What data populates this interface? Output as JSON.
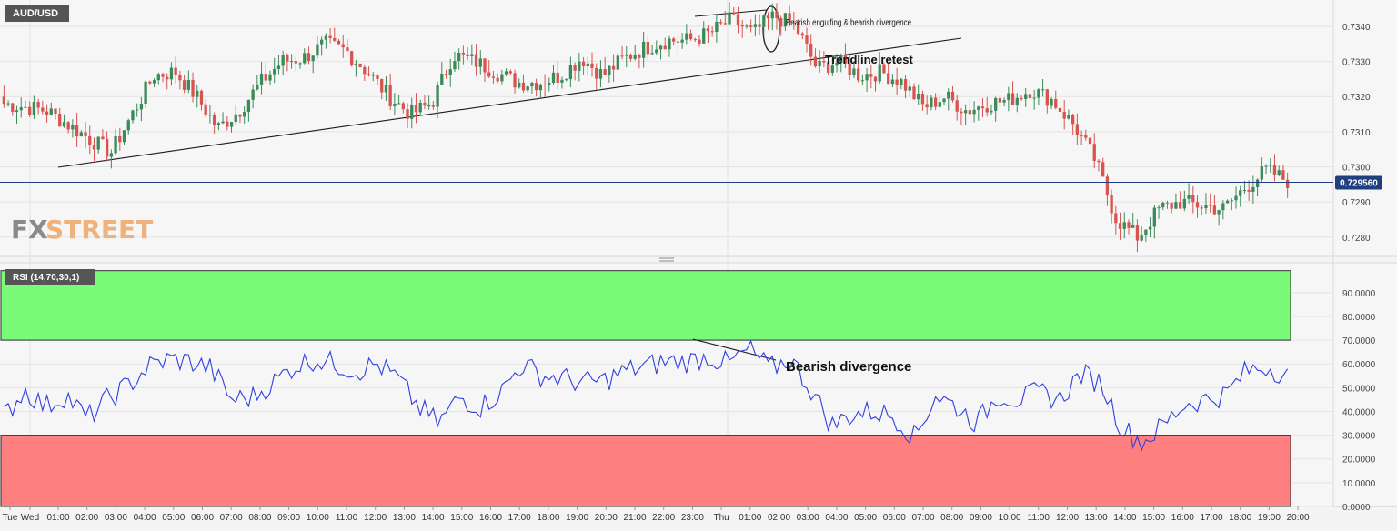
{
  "instrument_badge": "AUD/USD",
  "indicator_badge": "RSI (14,70,30,1)",
  "watermark": {
    "part1": "FX",
    "part2": "STREET"
  },
  "colors": {
    "bull": "#3b8a5a",
    "bear": "#d9534f",
    "rsi_line": "#2f3fe0",
    "overbought_fill": "#79fb79",
    "oversold_fill": "#fd7f7f",
    "price_line": "#1f3f7f",
    "badge_bg": "#555555",
    "badge_price_bg": "#1f3f7f"
  },
  "chart_data": [
    {
      "type": "candlestick",
      "symbol": "AUD/USD",
      "y_axis": {
        "ticks": [
          "0.7340",
          "0.7330",
          "0.7320",
          "0.7310",
          "0.7300",
          "0.7290",
          "0.7280"
        ],
        "range": [
          0.72745,
          0.73475
        ]
      },
      "current_price_label": "0.729560",
      "current_price": 0.72956,
      "x_axis_labels": [
        "Tue",
        "Wed",
        "01:00",
        "02:00",
        "03:00",
        "04:00",
        "05:00",
        "06:00",
        "07:00",
        "08:00",
        "09:00",
        "10:00",
        "11:00",
        "12:00",
        "13:00",
        "14:00",
        "15:00",
        "16:00",
        "17:00",
        "18:00",
        "19:00",
        "20:00",
        "21:00",
        "22:00",
        "23:00",
        "Thu",
        "01:00",
        "02:00",
        "03:00",
        "04:00",
        "05:00",
        "06:00",
        "07:00",
        "08:00",
        "09:00",
        "10:00",
        "11:00",
        "12:00",
        "13:00",
        "14:00",
        "15:00",
        "16:00",
        "17:00",
        "18:00",
        "19:00",
        "20:00"
      ],
      "price_anchors": [
        0.7318,
        0.7317,
        0.7316,
        0.7312,
        0.7308,
        0.7304,
        0.7315,
        0.7326,
        0.7327,
        0.732,
        0.7311,
        0.7316,
        0.7324,
        0.733,
        0.7331,
        0.7335,
        0.7333,
        0.7327,
        0.732,
        0.7315,
        0.7318,
        0.7332,
        0.733,
        0.7327,
        0.7324,
        0.7324,
        0.7326,
        0.7331,
        0.7326,
        0.7331,
        0.7334,
        0.7336,
        0.7336,
        0.7338,
        0.7342,
        0.7338,
        0.7343,
        0.734,
        0.7328,
        0.733,
        0.7326,
        0.7327,
        0.7324,
        0.7317,
        0.732,
        0.7316,
        0.7318,
        0.7319,
        0.7322,
        0.7319,
        0.7312,
        0.7302,
        0.7285,
        0.728,
        0.7288,
        0.729,
        0.7289,
        0.7288,
        0.7294,
        0.7299,
        0.7296
      ],
      "annotations": {
        "engulfing": "Bearish engulfing & bearish divergence",
        "retest": "Trendline retest"
      }
    },
    {
      "type": "line",
      "name": "RSI (14,70,30,1)",
      "y_axis": {
        "ticks": [
          "90.0000",
          "80.0000",
          "70.0000",
          "60.0000",
          "50.0000",
          "40.0000",
          "30.0000",
          "20.0000",
          "10.0000",
          "0.0000"
        ],
        "range": [
          0,
          100
        ]
      },
      "overbought": 70,
      "oversold": 30,
      "rsi_anchors": [
        38,
        49,
        42,
        47,
        37,
        45,
        51,
        59,
        62,
        61,
        58,
        45,
        46,
        52,
        59,
        62,
        60,
        57,
        60,
        54,
        42,
        35,
        46,
        42,
        48,
        60,
        55,
        54,
        52,
        53,
        57,
        59,
        61,
        61,
        63,
        60,
        66,
        58,
        62,
        49,
        34,
        39,
        40,
        38,
        29,
        47,
        42,
        35,
        47,
        45,
        48,
        45,
        56,
        52,
        33,
        27,
        34,
        43,
        45,
        47,
        57,
        59,
        55
      ],
      "annotation": "Bearish divergence"
    }
  ]
}
